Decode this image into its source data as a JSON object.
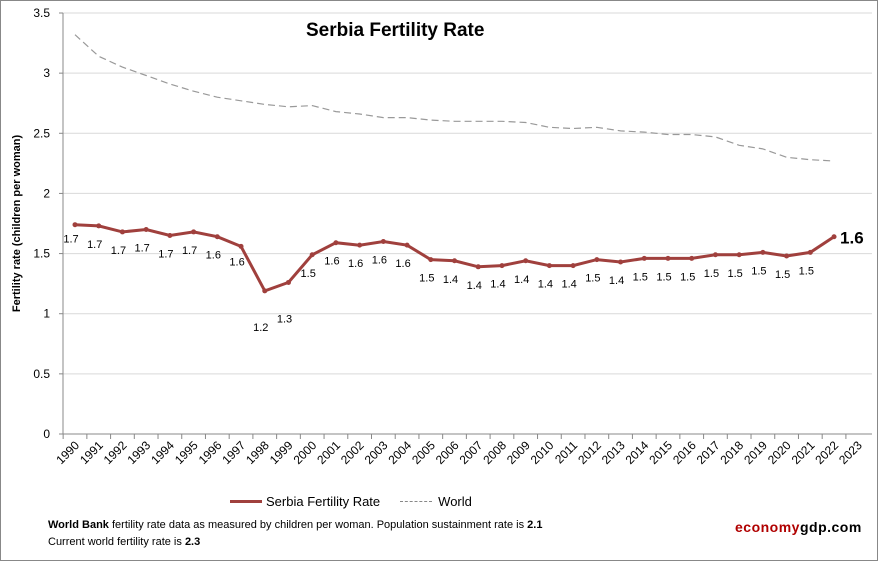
{
  "chart_data": {
    "type": "line",
    "title": "Serbia Fertility Rate",
    "ylabel": "Fertility rate (children per woman)",
    "xlabel": "",
    "ylim": [
      0,
      3.5
    ],
    "yticks": [
      "0",
      "0.5",
      "1",
      "1.5",
      "2",
      "2.5",
      "3",
      "3.5"
    ],
    "x": [
      1990,
      1991,
      1992,
      1993,
      1994,
      1995,
      1996,
      1997,
      1998,
      1999,
      2000,
      2001,
      2002,
      2003,
      2004,
      2005,
      2006,
      2007,
      2008,
      2009,
      2010,
      2011,
      2012,
      2013,
      2014,
      2015,
      2016,
      2017,
      2018,
      2019,
      2020,
      2021,
      2022,
      2023
    ],
    "grid": "horizontal",
    "legend_position": "bottom",
    "series": [
      {
        "name": "Serbia Fertility Rate",
        "color": "#a0403d",
        "style": "solid-markers",
        "values": [
          1.74,
          1.73,
          1.68,
          1.7,
          1.65,
          1.68,
          1.64,
          1.56,
          1.19,
          1.26,
          1.49,
          1.59,
          1.57,
          1.6,
          1.57,
          1.45,
          1.44,
          1.39,
          1.4,
          1.44,
          1.4,
          1.4,
          1.45,
          1.43,
          1.46,
          1.46,
          1.46,
          1.49,
          1.49,
          1.51,
          1.48,
          1.51,
          1.64,
          null
        ],
        "labels": [
          "1.7",
          "1.7",
          "1.7",
          "1.7",
          "1.7",
          "1.7",
          "1.6",
          "1.6",
          "1.2",
          "1.3",
          "1.5",
          "1.6",
          "1.6",
          "1.6",
          "1.6",
          "1.5",
          "1.4",
          "1.4",
          "1.4",
          "1.4",
          "1.4",
          "1.4",
          "1.5",
          "1.4",
          "1.5",
          "1.5",
          "1.5",
          "1.5",
          "1.5",
          "1.5",
          "1.5",
          "1.5",
          "1.6",
          ""
        ]
      },
      {
        "name": "World",
        "color": "#999999",
        "style": "dashed",
        "values": [
          3.32,
          3.14,
          3.05,
          2.98,
          2.91,
          2.85,
          2.8,
          2.77,
          2.74,
          2.72,
          2.73,
          2.68,
          2.66,
          2.63,
          2.63,
          2.61,
          2.6,
          2.6,
          2.6,
          2.59,
          2.55,
          2.54,
          2.55,
          2.52,
          2.51,
          2.49,
          2.49,
          2.47,
          2.4,
          2.37,
          2.3,
          2.28,
          2.27,
          null
        ]
      }
    ]
  },
  "footer": {
    "source_bold": "World Bank",
    "source_text": " fertility rate data as measured by children per woman.  Population sustainment rate is ",
    "sustain_rate": "2.1",
    "world_text": "Current world fertility rate is ",
    "world_rate": "2.3",
    "brand_a": "economy",
    "brand_b": "gdp.com"
  }
}
